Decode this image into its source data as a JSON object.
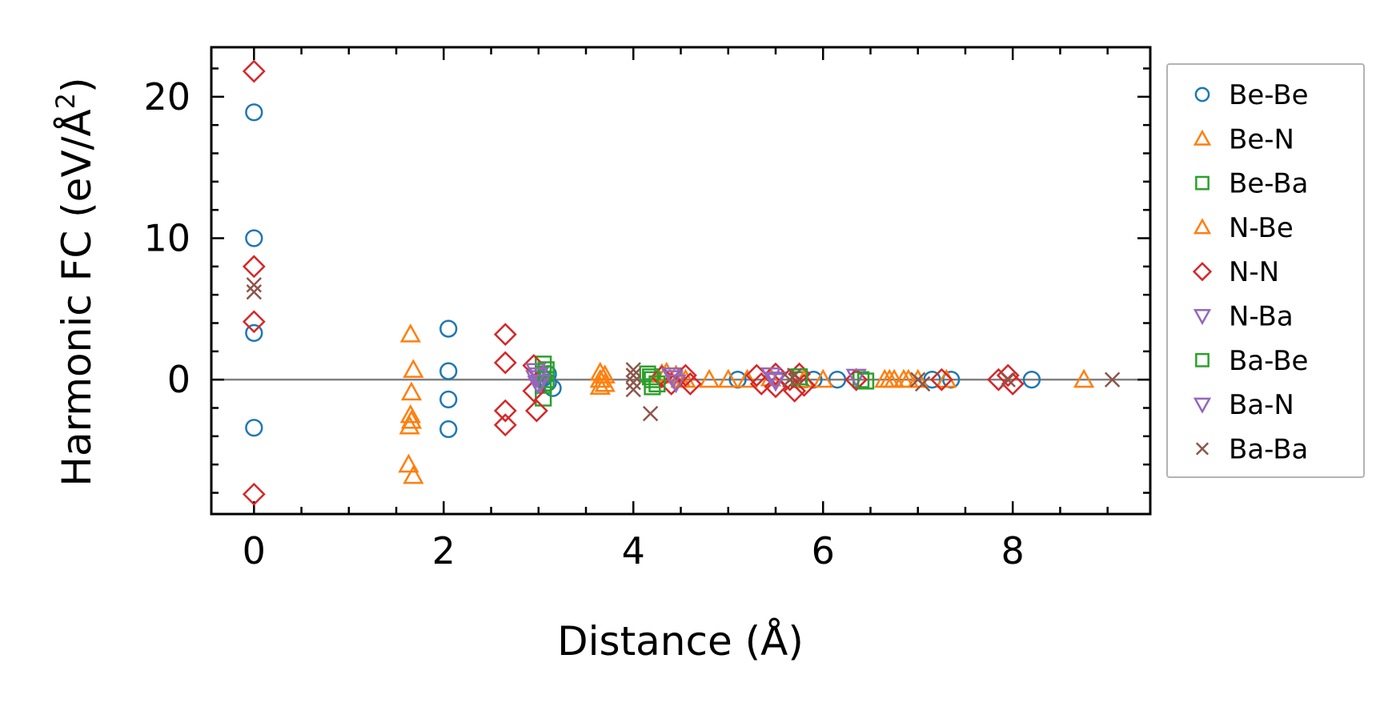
{
  "chart_data": {
    "type": "scatter",
    "title": "",
    "xlabel": "Distance (Å)",
    "ylabel_main": "Harmonic FC (eV/Å",
    "ylabel_sup": "2",
    "ylabel_close": ")",
    "xlim": [
      -0.45,
      9.45
    ],
    "ylim": [
      -9.5,
      23.5
    ],
    "xticks": [
      0,
      2,
      4,
      6,
      8
    ],
    "xtick_labels": [
      "0",
      "2",
      "4",
      "6",
      "8"
    ],
    "yticks": [
      0,
      10,
      20
    ],
    "ytick_labels": [
      "0",
      "10",
      "20"
    ],
    "x_minor_step": 0.5,
    "y_minor_step": 2,
    "zero_line": true,
    "grid": false,
    "legend_position": "right",
    "series": [
      {
        "name": "Be-Be",
        "marker": "circle",
        "color": "#1f77b4",
        "points": [
          [
            0,
            18.9
          ],
          [
            0,
            10.0
          ],
          [
            0,
            3.3
          ],
          [
            0,
            -3.4
          ],
          [
            2.05,
            3.6
          ],
          [
            2.05,
            0.6
          ],
          [
            2.05,
            -1.4
          ],
          [
            2.05,
            -3.5
          ],
          [
            3.1,
            0.4
          ],
          [
            3.1,
            -0.2
          ],
          [
            3.15,
            -0.6
          ],
          [
            3.05,
            0.1
          ],
          [
            5.1,
            0.0
          ],
          [
            5.9,
            0.0
          ],
          [
            6.15,
            0.0
          ],
          [
            7.15,
            0.0
          ],
          [
            7.35,
            0.0
          ],
          [
            8.2,
            0.0
          ]
        ]
      },
      {
        "name": "Be-N",
        "marker": "triangle-up",
        "color": "#ff7f0e",
        "points": [
          [
            1.65,
            3.2
          ],
          [
            1.68,
            0.7
          ],
          [
            1.66,
            -0.9
          ],
          [
            1.65,
            -2.5
          ],
          [
            1.66,
            -2.9
          ],
          [
            1.64,
            -3.3
          ],
          [
            1.63,
            -6.0
          ],
          [
            1.68,
            -6.8
          ],
          [
            3.65,
            0.5
          ],
          [
            3.65,
            0.0
          ],
          [
            3.65,
            -0.5
          ],
          [
            4.35,
            0.5
          ],
          [
            4.45,
            0.3
          ],
          [
            4.55,
            0.0
          ],
          [
            4.8,
            0.0
          ],
          [
            5.0,
            0.0
          ],
          [
            6.0,
            0.0
          ],
          [
            6.65,
            0.0
          ],
          [
            6.75,
            0.0
          ],
          [
            6.85,
            0.0
          ],
          [
            8.75,
            0.0
          ]
        ]
      },
      {
        "name": "Be-Ba",
        "marker": "square",
        "color": "#2ca02c",
        "points": [
          [
            3.05,
            1.1
          ],
          [
            3.05,
            0.4
          ],
          [
            3.05,
            -0.4
          ],
          [
            3.05,
            -1.3
          ],
          [
            4.15,
            0.4
          ],
          [
            4.2,
            0.0
          ],
          [
            4.2,
            -0.5
          ],
          [
            5.75,
            0.0
          ],
          [
            6.4,
            0.0
          ]
        ]
      },
      {
        "name": "N-Be",
        "marker": "triangle-up",
        "color": "#ff7f0e",
        "points": [
          [
            3.7,
            0.3
          ],
          [
            3.7,
            -0.3
          ],
          [
            4.3,
            0.4
          ],
          [
            4.5,
            0.0
          ],
          [
            5.2,
            0.0
          ],
          [
            5.45,
            0.1
          ],
          [
            5.8,
            0.0
          ],
          [
            6.7,
            0.0
          ],
          [
            6.9,
            0.0
          ],
          [
            7.0,
            0.0
          ],
          [
            7.3,
            0.0
          ]
        ]
      },
      {
        "name": "N-N",
        "marker": "diamond",
        "color": "#d62728",
        "points": [
          [
            0,
            21.8
          ],
          [
            0,
            8.0
          ],
          [
            0,
            4.1
          ],
          [
            0,
            -8.1
          ],
          [
            2.65,
            3.2
          ],
          [
            2.65,
            1.2
          ],
          [
            2.65,
            -2.2
          ],
          [
            2.65,
            -3.2
          ],
          [
            2.95,
            1.0
          ],
          [
            2.95,
            -0.8
          ],
          [
            2.98,
            -2.2
          ],
          [
            4.3,
            0.2
          ],
          [
            4.4,
            -0.3
          ],
          [
            4.55,
            0.3
          ],
          [
            4.6,
            -0.3
          ],
          [
            5.3,
            0.3
          ],
          [
            5.35,
            -0.3
          ],
          [
            5.5,
            0.4
          ],
          [
            5.5,
            -0.5
          ],
          [
            5.65,
            0.0
          ],
          [
            5.7,
            -0.8
          ],
          [
            5.75,
            0.4
          ],
          [
            5.8,
            -0.4
          ],
          [
            6.35,
            0.0
          ],
          [
            7.25,
            0.0
          ],
          [
            7.85,
            0.0
          ],
          [
            7.95,
            0.3
          ],
          [
            8.0,
            -0.3
          ]
        ]
      },
      {
        "name": "N-Ba",
        "marker": "triangle-down",
        "color": "#9467bd",
        "points": [
          [
            2.97,
            0.6
          ],
          [
            2.97,
            0.1
          ],
          [
            2.99,
            -0.3
          ],
          [
            4.4,
            0.3
          ],
          [
            4.45,
            -0.2
          ],
          [
            5.45,
            0.3
          ],
          [
            5.5,
            -0.1
          ],
          [
            6.35,
            0.2
          ]
        ]
      },
      {
        "name": "Ba-Be",
        "marker": "square",
        "color": "#2ca02c",
        "points": [
          [
            3.08,
            0.7
          ],
          [
            3.08,
            0.0
          ],
          [
            4.18,
            0.2
          ],
          [
            4.25,
            -0.3
          ],
          [
            5.75,
            0.2
          ],
          [
            6.45,
            -0.1
          ]
        ]
      },
      {
        "name": "Ba-N",
        "marker": "triangle-down",
        "color": "#9467bd",
        "points": [
          [
            3.0,
            0.3
          ],
          [
            3.02,
            -0.2
          ],
          [
            4.42,
            0.1
          ],
          [
            5.5,
            0.0
          ]
        ]
      },
      {
        "name": "Ba-Ba",
        "marker": "x",
        "color": "#8c564b",
        "points": [
          [
            0,
            6.7
          ],
          [
            0,
            6.2
          ],
          [
            4.0,
            0.7
          ],
          [
            4.0,
            0.3
          ],
          [
            4.0,
            -0.2
          ],
          [
            4.0,
            -0.7
          ],
          [
            4.18,
            -2.4
          ],
          [
            5.65,
            0.0
          ],
          [
            5.7,
            0.3
          ],
          [
            7.0,
            0.0
          ],
          [
            7.05,
            -0.3
          ],
          [
            7.95,
            0.0
          ],
          [
            9.05,
            0.0
          ]
        ]
      }
    ]
  },
  "colors": {
    "zero_line": "#808080",
    "axes": "#000000",
    "legend_border": "#b3b3b3"
  }
}
